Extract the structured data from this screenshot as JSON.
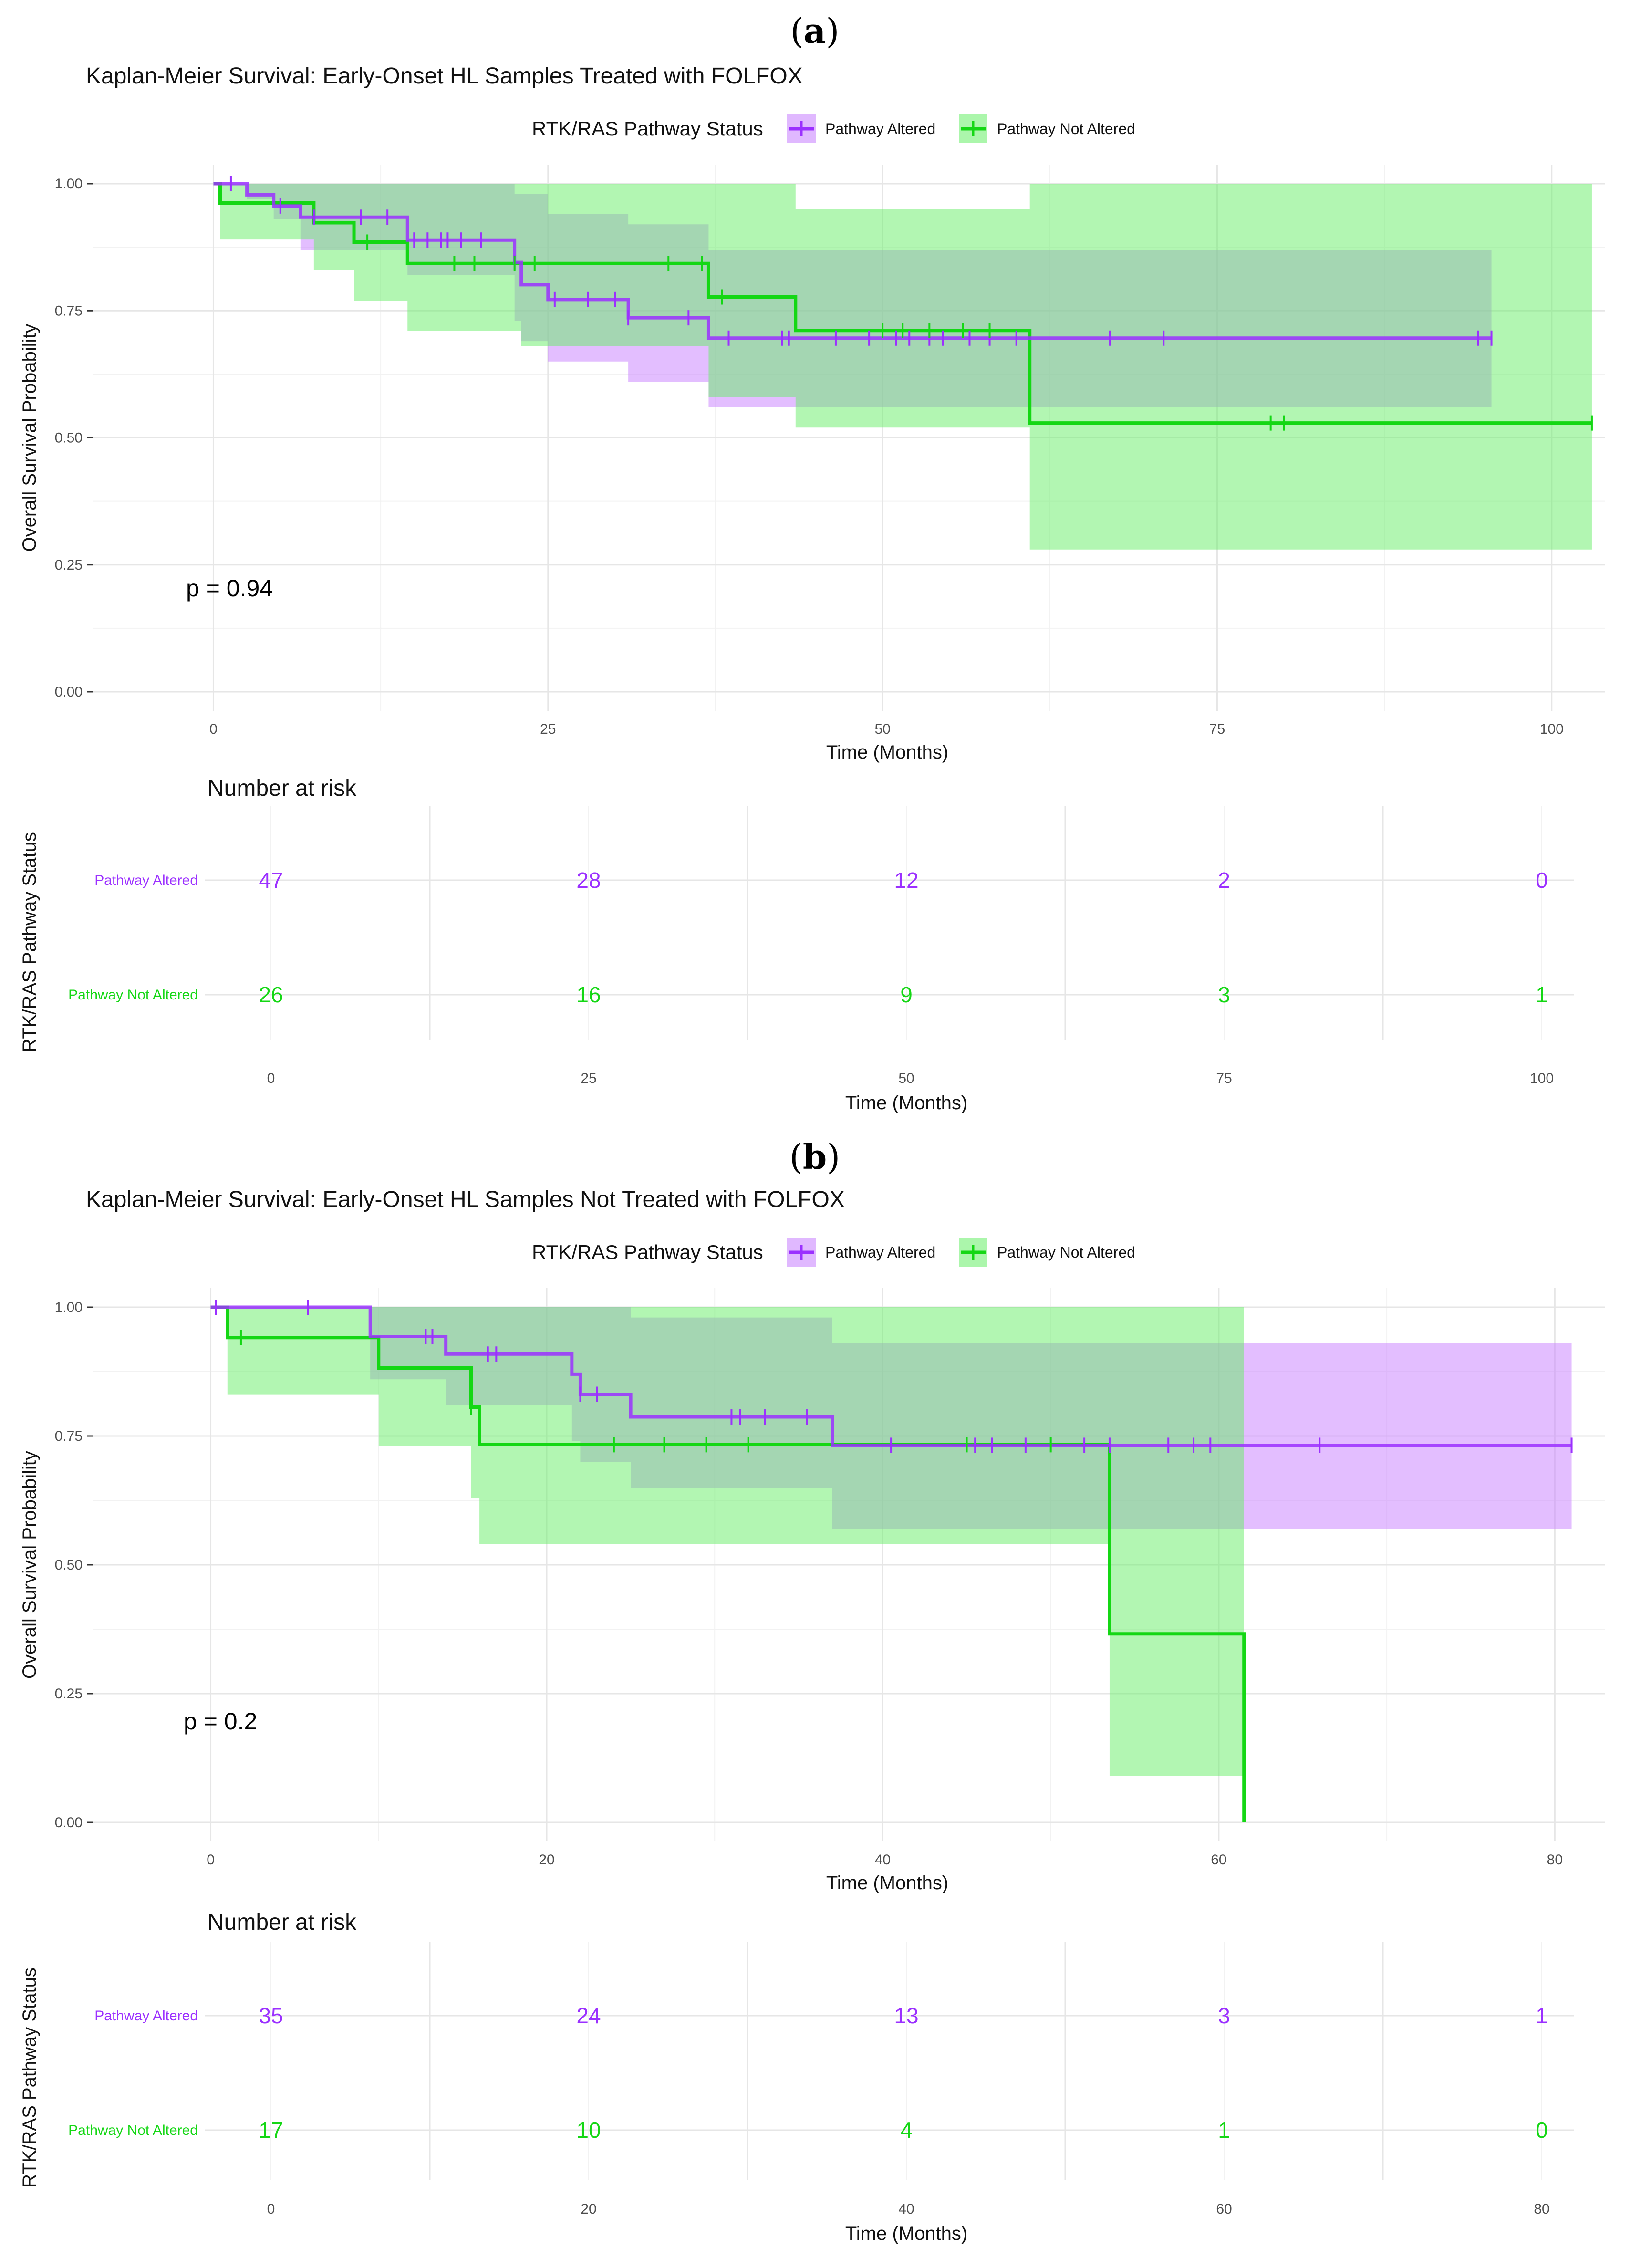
{
  "colors": {
    "altered": "#9b30ff",
    "altered_band": "#c77dff",
    "not_altered": "#14d714",
    "not_altered_band": "#66ee66",
    "grid_major": "#e6e6e6",
    "grid_minor": "#f2f2f2"
  },
  "figure": {
    "panels": [
      {
        "label": "a",
        "title": "Kaplan-Meier Survival: Early-Onset HL Samples Treated with FOLFOX",
        "legend_title": "RTK/RAS Pathway Status",
        "legend_labels": [
          "Pathway Altered",
          "Pathway Not Altered"
        ],
        "p_value": "p = 0.94",
        "number_at_risk_title": "Number at risk"
      },
      {
        "label": "b",
        "title": "Kaplan-Meier Survival: Early-Onset HL Samples Not Treated with FOLFOX",
        "legend_title": "RTK/RAS Pathway Status",
        "legend_labels": [
          "Pathway Altered",
          "Pathway Not Altered"
        ],
        "p_value": "p = 0.2",
        "number_at_risk_title": "Number at risk"
      }
    ]
  },
  "chart_data": [
    {
      "type": "line",
      "subtype": "kaplan-meier",
      "title": "Kaplan-Meier Survival: Early-Onset HL Samples Treated with FOLFOX",
      "xlabel": "Time (Months)",
      "ylabel": "Overall Survival Probability",
      "xlim": [
        -9,
        104
      ],
      "ylim": [
        0,
        1
      ],
      "xticks": [
        0,
        25,
        50,
        75,
        100
      ],
      "yticks": [
        0,
        0.25,
        0.5,
        0.75,
        1
      ],
      "ytick_labels": [
        "0.00",
        "0.25",
        "0.50",
        "0.75",
        "1.00"
      ],
      "legend": "top-center",
      "series": [
        {
          "name": "Pathway Altered",
          "steps": [
            [
              0,
              1
            ],
            [
              2.5,
              0.978
            ],
            [
              4.5,
              0.956
            ],
            [
              6.5,
              0.934
            ],
            [
              14.5,
              0.889
            ],
            [
              22.5,
              0.845
            ],
            [
              23,
              0.801
            ],
            [
              25,
              0.772
            ],
            [
              31,
              0.736
            ],
            [
              37,
              0.696
            ],
            [
              95.5,
              0.696
            ]
          ],
          "lower": [
            [
              0,
              1
            ],
            [
              2.5,
              0.97
            ],
            [
              4.5,
              0.93
            ],
            [
              6.5,
              0.87
            ],
            [
              14.5,
              0.82
            ],
            [
              22.5,
              0.73
            ],
            [
              23,
              0.69
            ],
            [
              25,
              0.65
            ],
            [
              31,
              0.61
            ],
            [
              37,
              0.56
            ],
            [
              43.5,
              0.56
            ]
          ],
          "upper": [
            [
              0,
              1
            ],
            [
              14.5,
              1
            ],
            [
              22.5,
              0.98
            ],
            [
              25,
              0.94
            ],
            [
              31,
              0.92
            ],
            [
              37,
              0.87
            ],
            [
              95.5,
              0.87
            ]
          ],
          "censors": [
            1.3,
            5,
            7.5,
            11,
            13,
            15,
            16,
            17,
            17.5,
            18.5,
            20,
            22.5,
            25.5,
            28,
            30,
            31,
            35.5,
            38.5,
            42.5,
            43,
            46.5,
            49,
            51,
            52,
            53.5,
            54.5,
            56.5,
            58,
            60,
            67,
            71,
            94.5,
            95.5
          ]
        },
        {
          "name": "Pathway Not Altered",
          "steps": [
            [
              0,
              1
            ],
            [
              0.5,
              0.962
            ],
            [
              7.5,
              0.923
            ],
            [
              10.5,
              0.885
            ],
            [
              14.5,
              0.843
            ],
            [
              37,
              0.777
            ],
            [
              43.5,
              0.711
            ],
            [
              61,
              0.529
            ],
            [
              103,
              0.529
            ]
          ],
          "lower": [
            [
              0,
              1
            ],
            [
              0.5,
              0.89
            ],
            [
              7.5,
              0.83
            ],
            [
              10.5,
              0.77
            ],
            [
              14.5,
              0.71
            ],
            [
              22.5,
              0.71
            ],
            [
              23,
              0.68
            ],
            [
              37,
              0.58
            ],
            [
              43.5,
              0.52
            ],
            [
              61,
              0.28
            ],
            [
              103,
              0.28
            ]
          ],
          "upper": [
            [
              0,
              1
            ],
            [
              37,
              1
            ],
            [
              43.5,
              0.98
            ],
            [
              43.5,
              0.95
            ],
            [
              61,
              0.95
            ],
            [
              61,
              1
            ],
            [
              103,
              1
            ]
          ],
          "censors": [
            11.5,
            18,
            19.5,
            22.5,
            24,
            34,
            36.5,
            38,
            50,
            51.5,
            53.5,
            56,
            58,
            79,
            80,
            103
          ]
        }
      ],
      "annotation": "p = 0.94",
      "risk_table": {
        "title": "Number at risk",
        "xlabel": "Time (Months)",
        "ylabel": "RTK/RAS Pathway Status",
        "times": [
          0,
          25,
          50,
          75,
          100
        ],
        "rows": [
          {
            "name": "Pathway Altered",
            "values": [
              47,
              28,
              12,
              2,
              0
            ]
          },
          {
            "name": "Pathway Not Altered",
            "values": [
              26,
              16,
              9,
              3,
              1
            ]
          }
        ]
      }
    },
    {
      "type": "line",
      "subtype": "kaplan-meier",
      "title": "Kaplan-Meier Survival: Early-Onset HL Samples Not Treated with FOLFOX",
      "xlabel": "Time (Months)",
      "ylabel": "Overall Survival Probability",
      "xlim": [
        -7,
        83
      ],
      "ylim": [
        0,
        1
      ],
      "xticks": [
        0,
        20,
        40,
        60,
        80
      ],
      "yticks": [
        0,
        0.25,
        0.5,
        0.75,
        1
      ],
      "ytick_labels": [
        "0.00",
        "0.25",
        "0.50",
        "0.75",
        "1.00"
      ],
      "legend": "top-center",
      "series": [
        {
          "name": "Pathway Altered",
          "steps": [
            [
              0,
              1
            ],
            [
              9.5,
              0.943
            ],
            [
              14,
              0.909
            ],
            [
              21.5,
              0.87
            ],
            [
              22,
              0.831
            ],
            [
              25,
              0.787
            ],
            [
              37,
              0.732
            ],
            [
              81,
              0.732
            ]
          ],
          "lower": [
            [
              0,
              1
            ],
            [
              9.5,
              0.86
            ],
            [
              14,
              0.81
            ],
            [
              21.5,
              0.74
            ],
            [
              22,
              0.7
            ],
            [
              25,
              0.65
            ],
            [
              37,
              0.57
            ],
            [
              81,
              0.57
            ]
          ],
          "upper": [
            [
              0,
              1
            ],
            [
              25,
              1
            ],
            [
              25,
              0.98
            ],
            [
              37,
              0.95
            ],
            [
              37,
              0.93
            ],
            [
              81,
              0.93
            ]
          ],
          "censors": [
            0.3,
            5.8,
            12.8,
            13.2,
            16.5,
            17,
            22,
            23,
            31,
            31.5,
            33,
            35.5,
            40.5,
            45.5,
            46.5,
            48.5,
            52,
            53.5,
            57,
            58.5,
            59.5,
            66,
            81
          ]
        },
        {
          "name": "Pathway Not Altered",
          "steps": [
            [
              0,
              1
            ],
            [
              1,
              0.941
            ],
            [
              10,
              0.882
            ],
            [
              15.5,
              0.806
            ],
            [
              16,
              0.733
            ],
            [
              53.5,
              0.366
            ],
            [
              61.5,
              0
            ],
            [
              61.5,
              0
            ]
          ],
          "lower": [
            [
              0,
              1
            ],
            [
              1,
              0.83
            ],
            [
              10,
              0.73
            ],
            [
              15.5,
              0.63
            ],
            [
              16,
              0.54
            ],
            [
              53.5,
              0.09
            ],
            [
              61.5,
              0.09
            ]
          ],
          "upper": [
            [
              0,
              1
            ],
            [
              61.5,
              1
            ]
          ],
          "censors": [
            1.8,
            15.5,
            24,
            27,
            29.5,
            32,
            45,
            50
          ]
        }
      ],
      "annotation": "p = 0.2",
      "risk_table": {
        "title": "Number at risk",
        "xlabel": "Time (Months)",
        "ylabel": "RTK/RAS Pathway Status",
        "times": [
          0,
          20,
          40,
          60,
          80
        ],
        "rows": [
          {
            "name": "Pathway Altered",
            "values": [
              35,
              24,
              13,
              3,
              1
            ]
          },
          {
            "name": "Pathway Not Altered",
            "values": [
              17,
              10,
              4,
              1,
              0
            ]
          }
        ]
      }
    }
  ]
}
